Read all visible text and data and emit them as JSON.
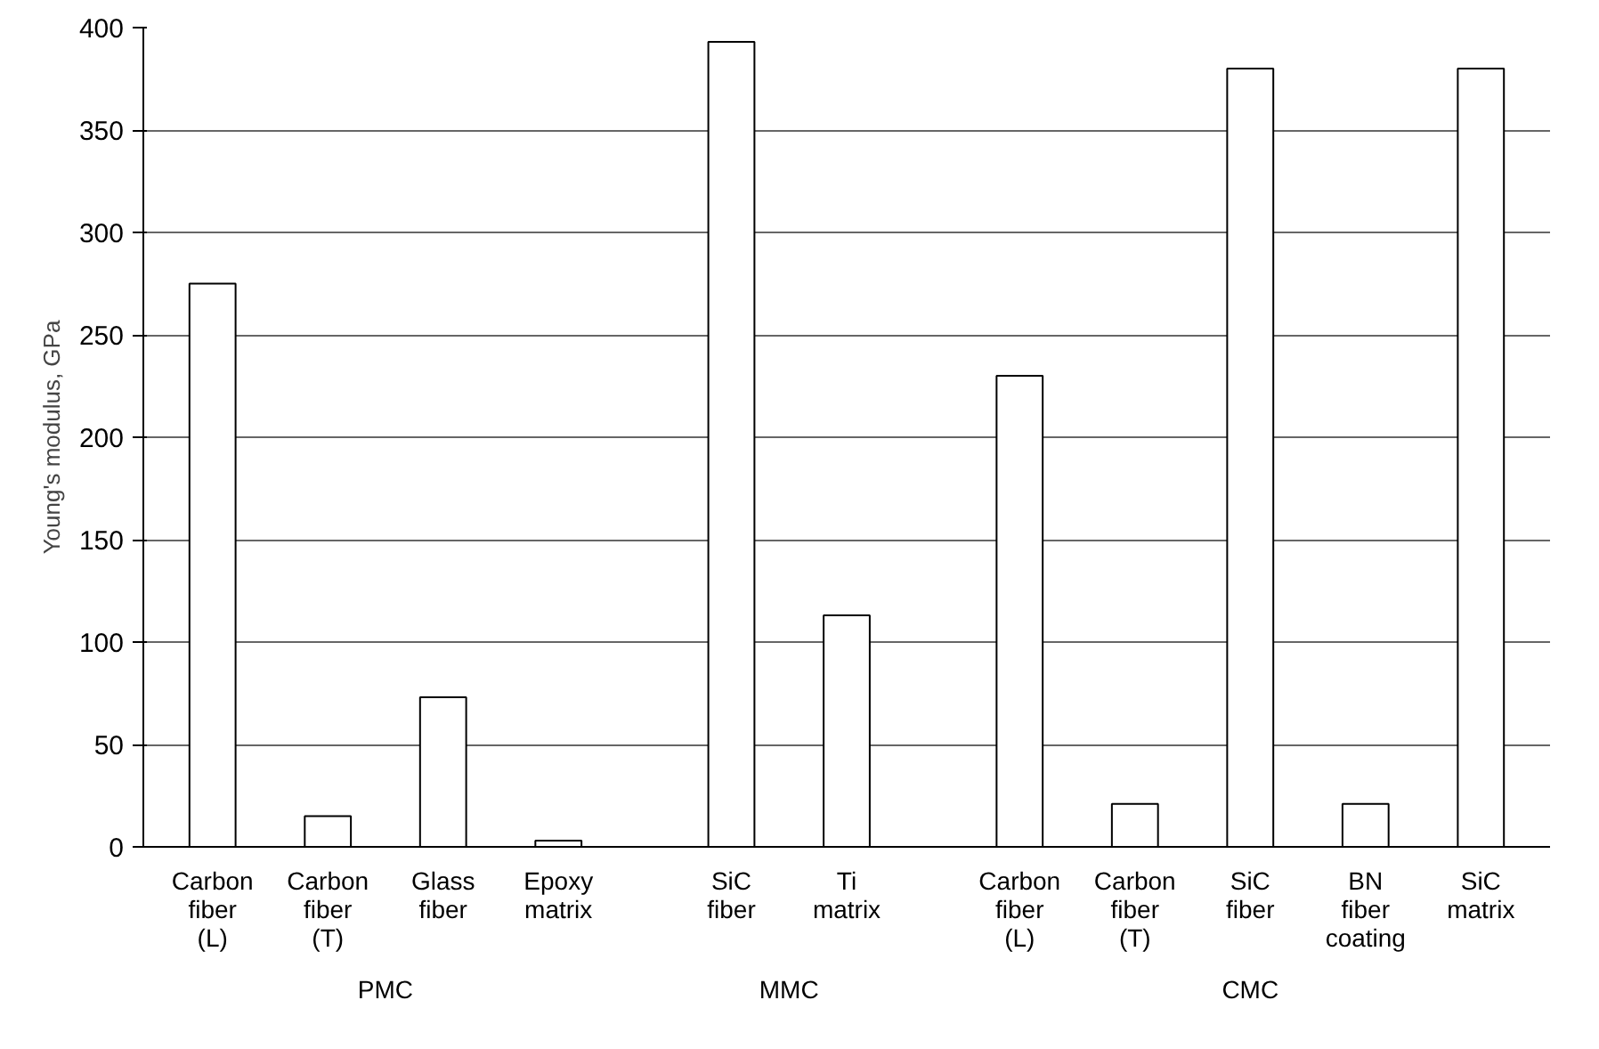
{
  "chart_data": {
    "type": "bar",
    "ylabel": "Young's modulus, GPa",
    "categories": [
      "Carbon\nfiber\n(L)",
      "Carbon\nfiber\n(T)",
      "Glass\nfiber",
      "Epoxy\nmatrix",
      "SiC\nfiber",
      "Ti\nmatrix",
      "Carbon\nfiber\n(L)",
      "Carbon\nfiber\n(T)",
      "SiC\nfiber",
      "BN\nfiber\ncoating",
      "SiC\nmatrix"
    ],
    "values": [
      275,
      15,
      73,
      3,
      393,
      113,
      230,
      21,
      380,
      21,
      380
    ],
    "color": "#ffffff",
    "ylim": [
      0,
      400
    ],
    "yticks": [
      0,
      50,
      100,
      150,
      200,
      250,
      300,
      350,
      400
    ],
    "grid": "y",
    "annotations": [
      "PMC",
      "MMC",
      "CMC"
    ]
  }
}
